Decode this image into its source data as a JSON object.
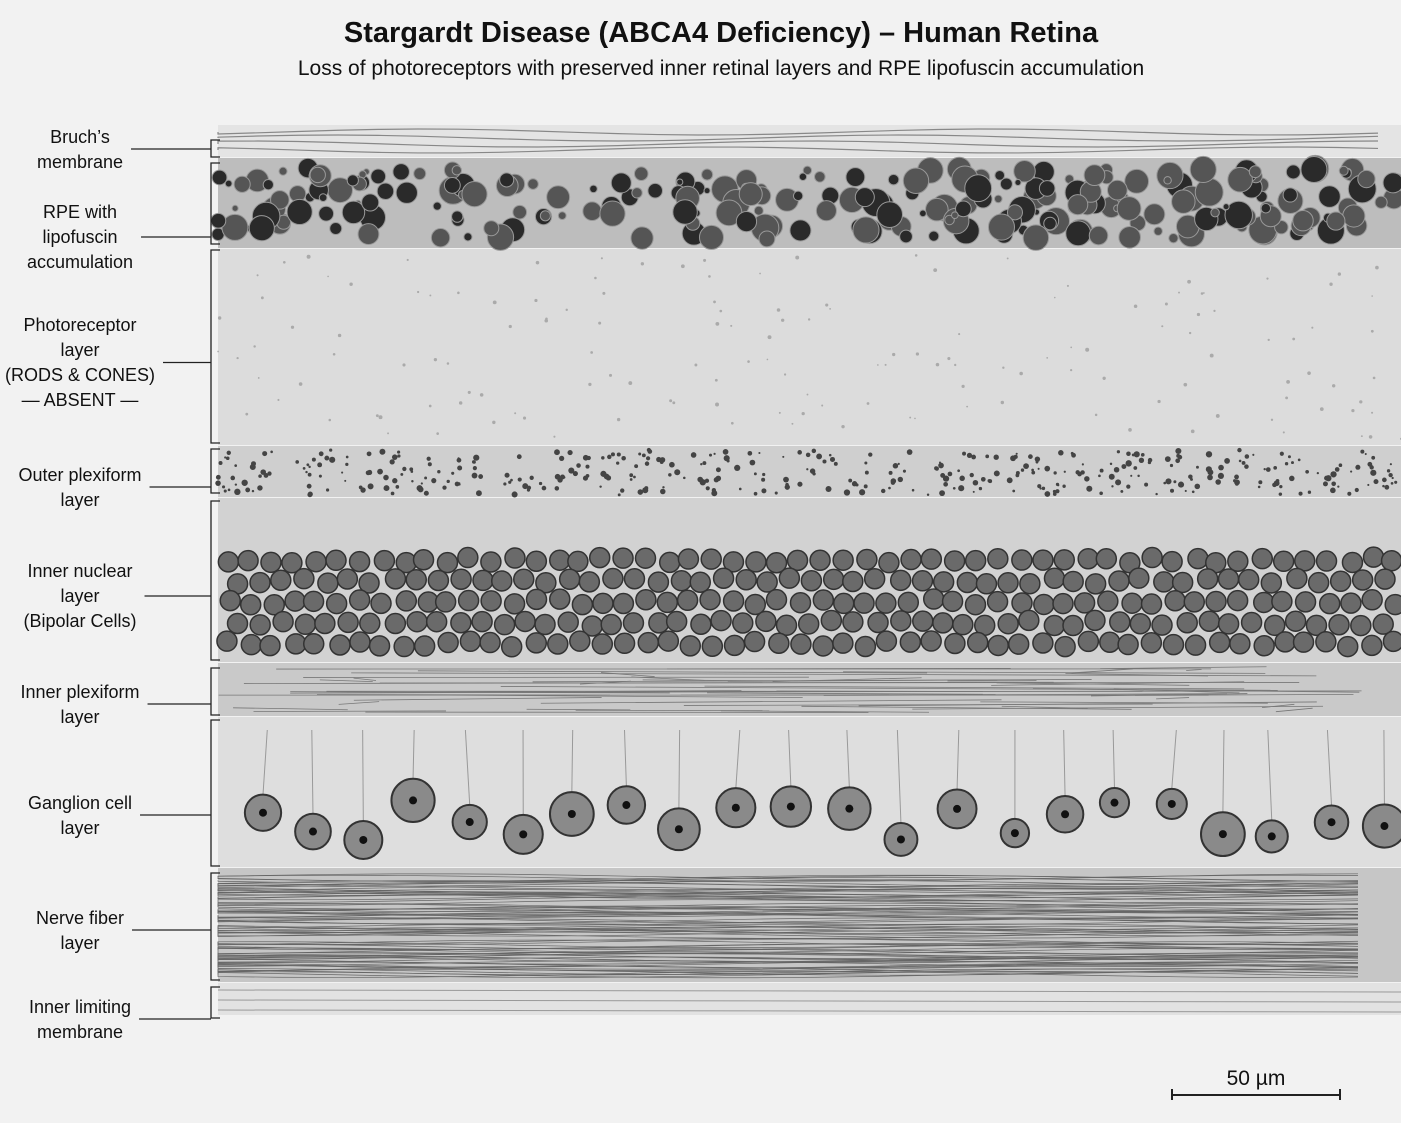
{
  "title": "Stargardt Disease (ABCA4 Deficiency) – Human Retina",
  "subtitle": "Loss of photoreceptors with preserved inner retinal layers and RPE lipofuscin accumulation",
  "labels": [
    {
      "lines": [
        "Bruch’s",
        "membrane"
      ]
    },
    {
      "lines": [
        "RPE with",
        "lipofuscin",
        "accumulation"
      ]
    },
    {
      "lines": [
        "Photoreceptor",
        "layer",
        "(RODS & CONES)",
        "— ABSENT —"
      ]
    },
    {
      "lines": [
        "Outer plexiform",
        "layer"
      ]
    },
    {
      "lines": [
        "Inner nuclear",
        "layer",
        "(Bipolar Cells)"
      ]
    },
    {
      "lines": [
        "Inner plexiform",
        "layer"
      ]
    },
    {
      "lines": [
        "Ganglion cell",
        "layer"
      ]
    },
    {
      "lines": [
        "Nerve fiber",
        "layer"
      ]
    },
    {
      "lines": [
        "Inner limiting",
        "membrane"
      ]
    }
  ],
  "scale_bar": "50 µm"
}
